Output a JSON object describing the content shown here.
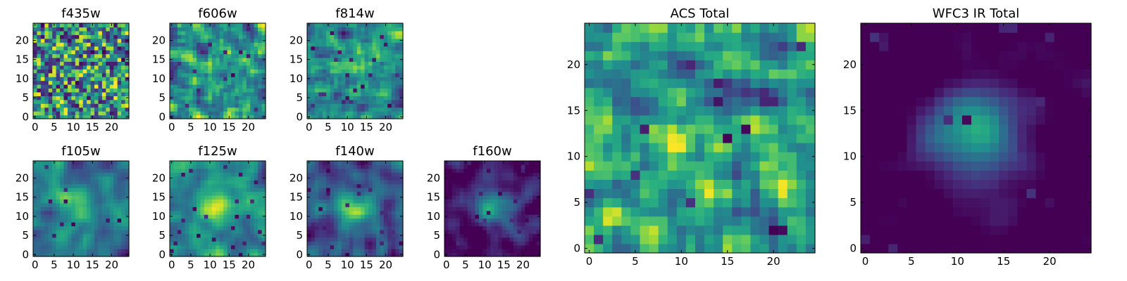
{
  "chart_data": [
    {
      "type": "heatmap",
      "title": "f435w",
      "seed": 11,
      "smooth": 0.15,
      "blob": 0.05,
      "bias": 0.05,
      "xticks": [
        0,
        5,
        10,
        15,
        20
      ],
      "yticks": [
        0,
        5,
        10,
        15,
        20
      ],
      "xlim": [
        0,
        25
      ],
      "ylim": [
        0,
        25
      ],
      "grid": false,
      "colormap": "viridis"
    },
    {
      "type": "heatmap",
      "title": "f606w",
      "seed": 23,
      "smooth": 0.2,
      "blob": 0.08,
      "bias": 0.1,
      "xticks": [
        0,
        5,
        10,
        15,
        20
      ],
      "yticks": [
        0,
        5,
        10,
        15,
        20
      ],
      "xlim": [
        0,
        25
      ],
      "ylim": [
        0,
        25
      ],
      "grid": false,
      "colormap": "viridis"
    },
    {
      "type": "heatmap",
      "title": "f814w",
      "seed": 37,
      "smooth": 0.25,
      "blob": 0.15,
      "bias": 0.05,
      "xticks": [
        0,
        5,
        10,
        15,
        20
      ],
      "yticks": [
        0,
        5,
        10,
        15,
        20
      ],
      "xlim": [
        0,
        25
      ],
      "ylim": [
        0,
        25
      ],
      "grid": false,
      "colormap": "viridis"
    },
    {
      "type": "heatmap",
      "title": "f105w",
      "seed": 41,
      "smooth": 0.55,
      "blob": 0.35,
      "bias": 0.05,
      "xticks": [
        0,
        5,
        10,
        15,
        20
      ],
      "yticks": [
        0,
        5,
        10,
        15,
        20
      ],
      "xlim": [
        0,
        25
      ],
      "ylim": [
        0,
        25
      ],
      "grid": false,
      "colormap": "viridis"
    },
    {
      "type": "heatmap",
      "title": "f125w",
      "seed": 53,
      "smooth": 0.6,
      "blob": 0.35,
      "bias": 0.15,
      "xticks": [
        0,
        5,
        10,
        15,
        20
      ],
      "yticks": [
        0,
        5,
        10,
        15,
        20
      ],
      "xlim": [
        0,
        25
      ],
      "ylim": [
        0,
        25
      ],
      "grid": false,
      "colormap": "viridis"
    },
    {
      "type": "heatmap",
      "title": "f140w",
      "seed": 67,
      "smooth": 0.6,
      "blob": 0.45,
      "bias": 0.0,
      "xticks": [
        0,
        5,
        10,
        15,
        20
      ],
      "yticks": [
        0,
        5,
        10,
        15,
        20
      ],
      "xlim": [
        0,
        25
      ],
      "ylim": [
        0,
        25
      ],
      "grid": false,
      "colormap": "viridis"
    },
    {
      "type": "heatmap",
      "title": "f160w",
      "seed": 79,
      "smooth": 0.7,
      "blob": 0.6,
      "bias": -0.15,
      "xticks": [
        0,
        5,
        10,
        15,
        20
      ],
      "yticks": [
        0,
        5,
        10,
        15,
        20
      ],
      "xlim": [
        0,
        25
      ],
      "ylim": [
        0,
        25
      ],
      "grid": false,
      "colormap": "viridis"
    },
    {
      "type": "heatmap",
      "title": "ACS Total",
      "seed": 97,
      "smooth": 0.25,
      "blob": 0.12,
      "bias": 0.1,
      "xticks": [
        0,
        5,
        10,
        15,
        20
      ],
      "yticks": [
        0,
        5,
        10,
        15,
        20
      ],
      "xlim": [
        0,
        25
      ],
      "ylim": [
        0,
        25
      ],
      "grid": false,
      "colormap": "viridis"
    },
    {
      "type": "heatmap",
      "title": "WFC3 IR Total",
      "seed": 103,
      "smooth": 0.8,
      "blob": 0.7,
      "bias": -0.2,
      "xticks": [
        0,
        5,
        10,
        15,
        20
      ],
      "yticks": [
        0,
        5,
        10,
        15,
        20
      ],
      "xlim": [
        0,
        25
      ],
      "ylim": [
        0,
        25
      ],
      "grid": false,
      "colormap": "viridis"
    }
  ]
}
